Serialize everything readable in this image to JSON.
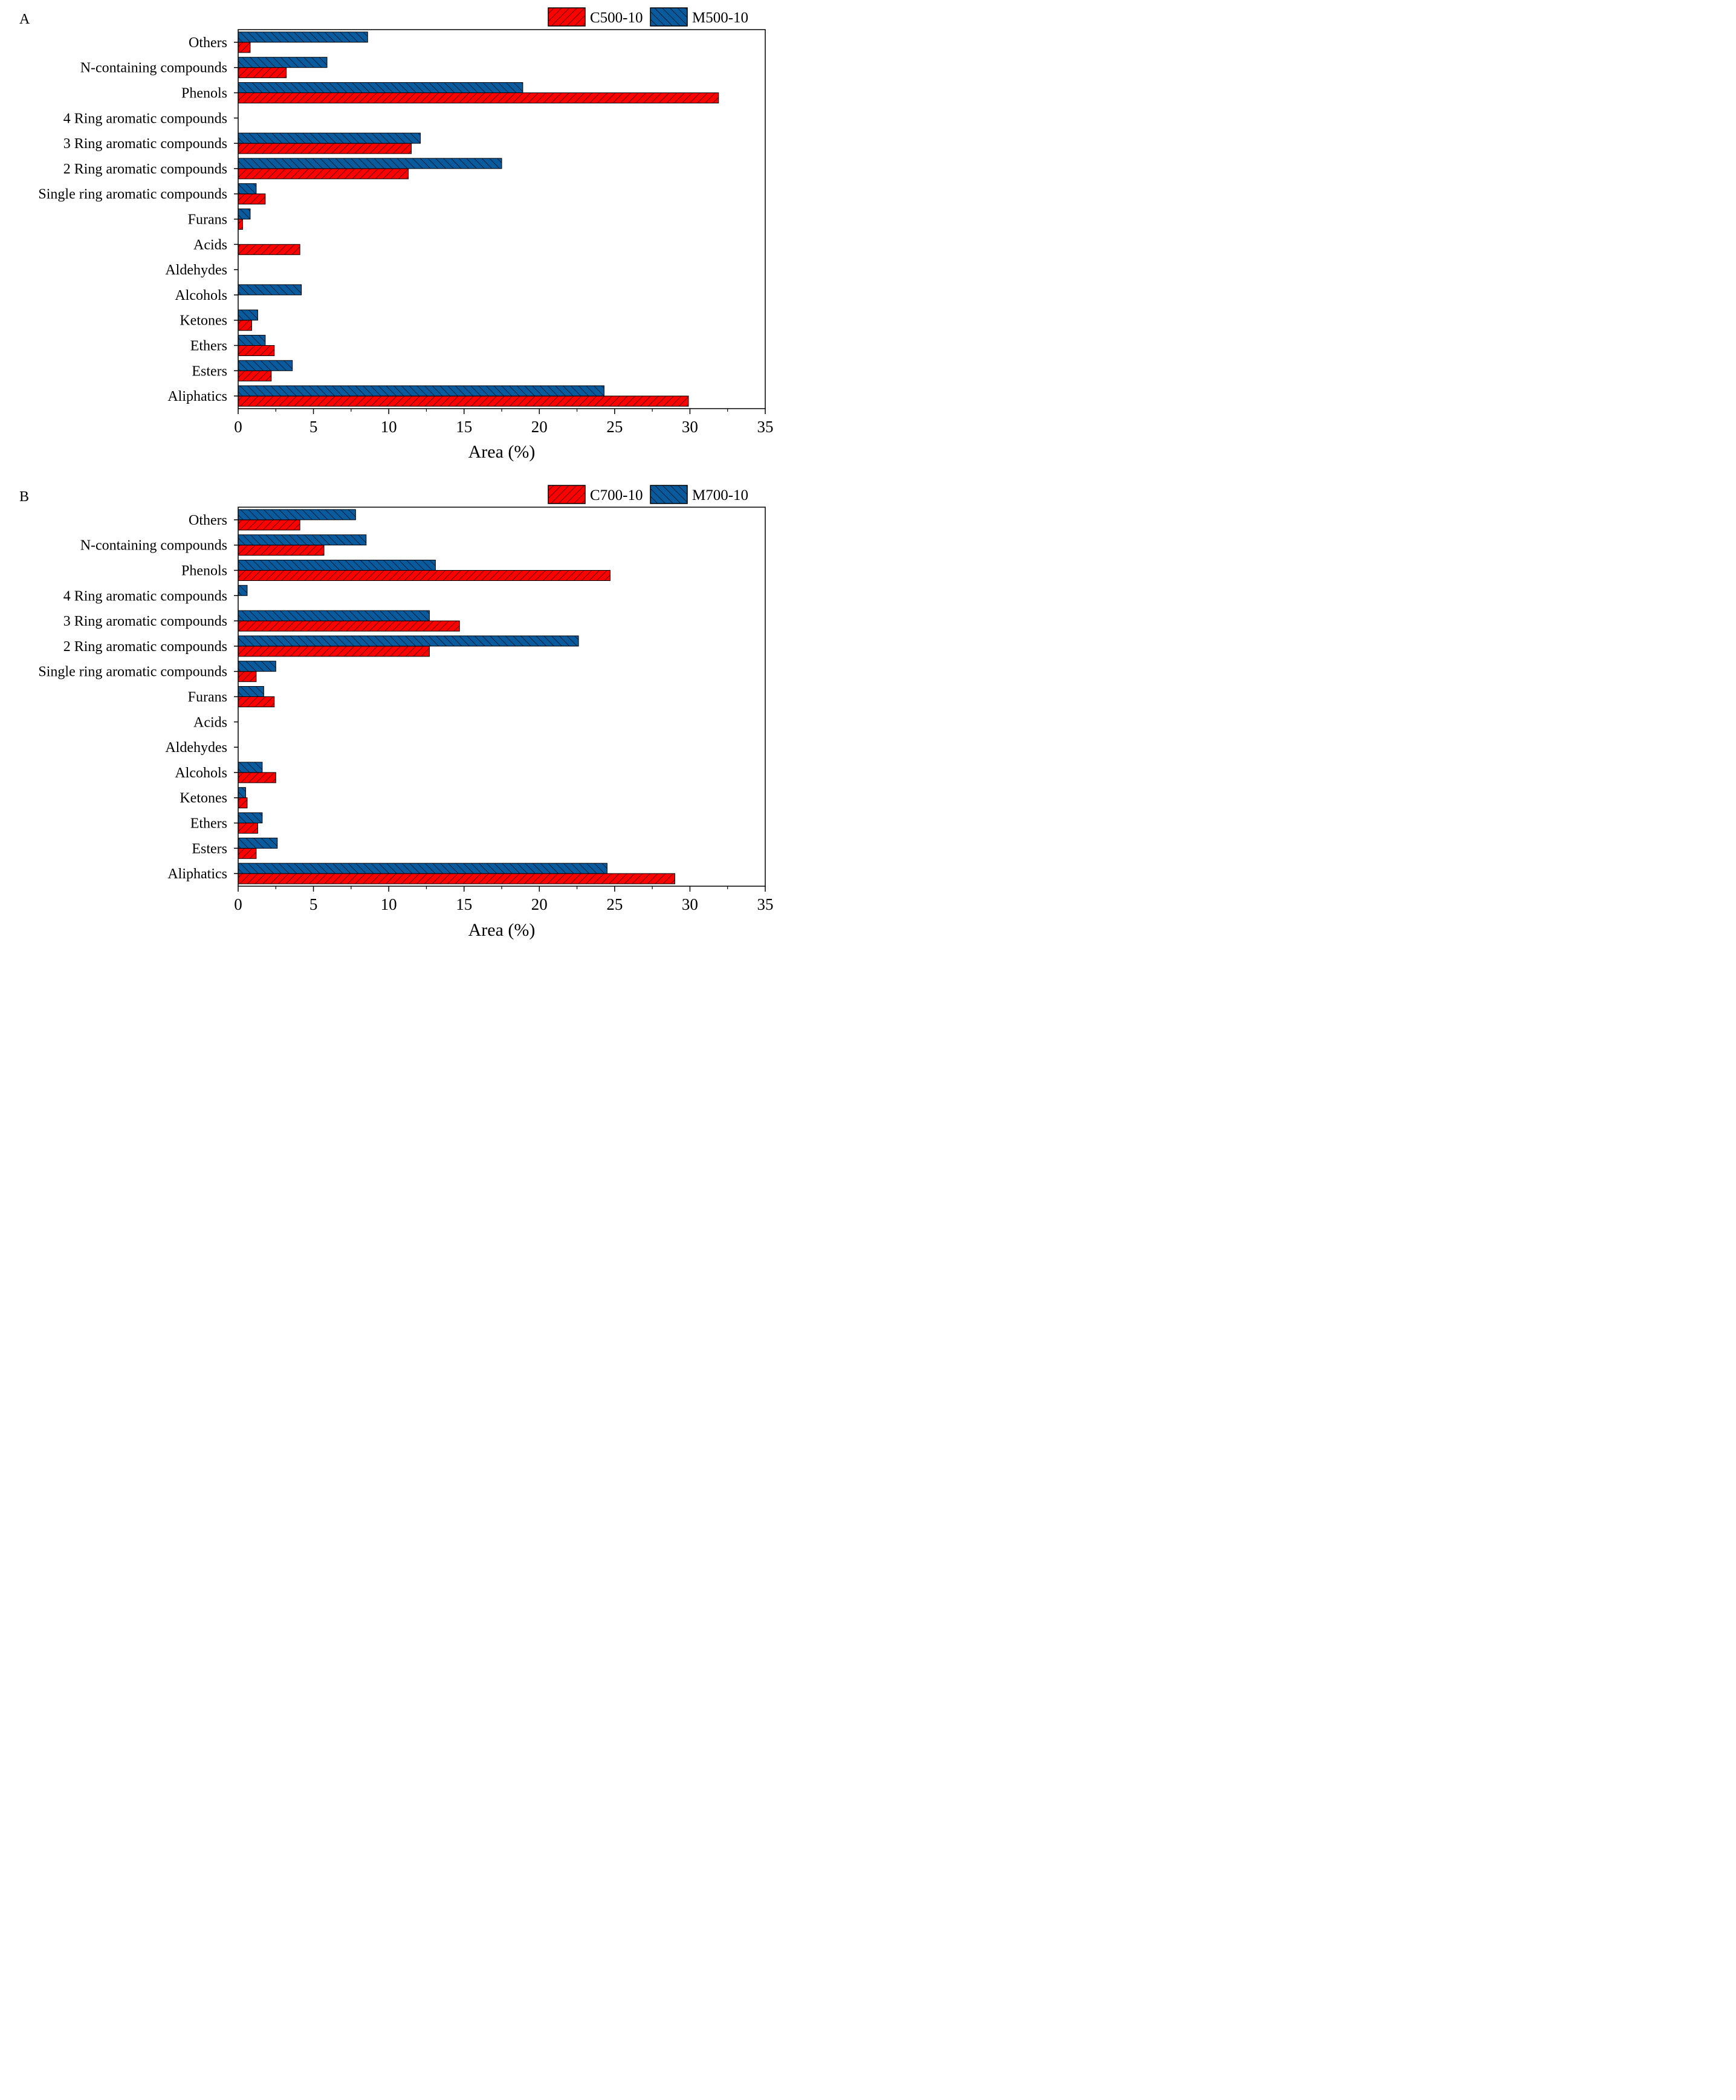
{
  "legend_colors": {
    "C": "#ff0000",
    "M": "#0a5a9e"
  },
  "chart_data": [
    {
      "type": "bar",
      "orientation": "horizontal",
      "panel_label": "A",
      "xlabel": "Area (%)",
      "xlim": [
        0,
        35
      ],
      "xticks": [
        "0",
        "5",
        "10",
        "15",
        "20",
        "25",
        "30",
        "35"
      ],
      "categories": [
        "Aliphatics",
        "Esters",
        "Ethers",
        "Ketones",
        "Alcohols",
        "Aldehydes",
        "Acids",
        "Furans",
        "Single ring aromatic compounds",
        "2 Ring aromatic compounds",
        "3 Ring aromatic compounds",
        "4 Ring aromatic compounds",
        "Phenols",
        "N-containing compounds",
        "Others"
      ],
      "series": [
        {
          "name": "C500-10",
          "color": "#ff0000",
          "values": [
            29.9,
            2.2,
            2.4,
            0.9,
            0.0,
            0.0,
            4.1,
            0.3,
            1.8,
            11.3,
            11.5,
            0.0,
            31.9,
            3.2,
            0.8
          ]
        },
        {
          "name": "M500-10",
          "color": "#0a5a9e",
          "values": [
            24.3,
            3.6,
            1.8,
            1.3,
            4.2,
            0.0,
            0.0,
            0.8,
            1.2,
            17.5,
            12.1,
            0.0,
            18.9,
            5.9,
            8.6
          ]
        }
      ]
    },
    {
      "type": "bar",
      "orientation": "horizontal",
      "panel_label": "B",
      "xlabel": "Area (%)",
      "xlim": [
        0,
        35
      ],
      "xticks": [
        "0",
        "5",
        "10",
        "15",
        "20",
        "25",
        "30",
        "35"
      ],
      "categories": [
        "Aliphatics",
        "Esters",
        "Ethers",
        "Ketones",
        "Alcohols",
        "Aldehydes",
        "Acids",
        "Furans",
        "Single ring aromatic compounds",
        "2 Ring aromatic compounds",
        "3 Ring aromatic compounds",
        "4 Ring aromatic compounds",
        "Phenols",
        "N-containing compounds",
        "Others"
      ],
      "series": [
        {
          "name": "C700-10",
          "color": "#ff0000",
          "values": [
            29.0,
            1.2,
            1.3,
            0.6,
            2.5,
            0.0,
            0.0,
            2.4,
            1.2,
            12.7,
            14.7,
            0.0,
            24.7,
            5.7,
            4.1
          ]
        },
        {
          "name": "M700-10",
          "color": "#0a5a9e",
          "values": [
            24.5,
            2.6,
            1.6,
            0.5,
            1.6,
            0.0,
            0.0,
            1.7,
            2.5,
            22.6,
            12.7,
            0.6,
            13.1,
            8.5,
            7.8
          ]
        }
      ]
    }
  ]
}
